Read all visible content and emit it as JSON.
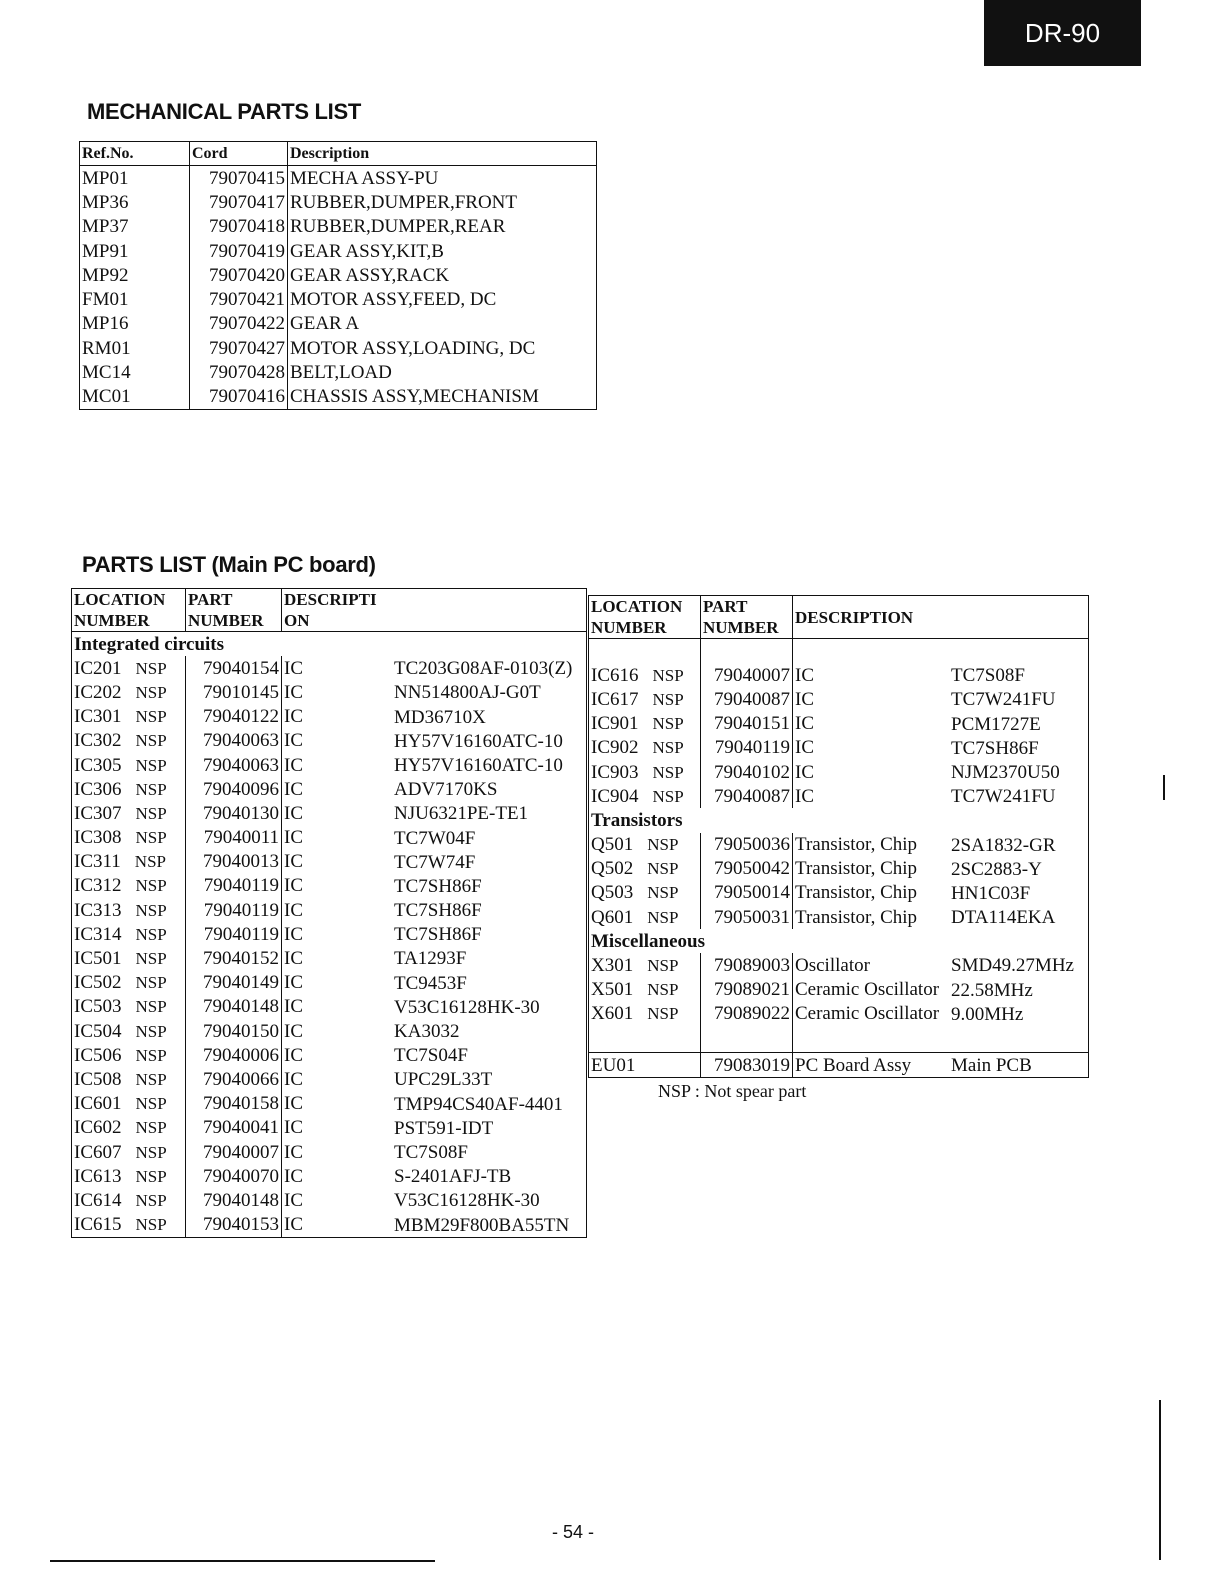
{
  "badge": "DR-90",
  "mechanical": {
    "title": "MECHANICAL PARTS LIST",
    "headers": [
      "Ref.No.",
      "Cord",
      "Description"
    ],
    "rows": [
      [
        "MP01",
        "79070415",
        "MECHA ASSY-PU"
      ],
      [
        "MP36",
        "79070417",
        "RUBBER,DUMPER,FRONT"
      ],
      [
        "MP37",
        "79070418",
        "RUBBER,DUMPER,REAR"
      ],
      [
        "MP91",
        "79070419",
        "GEAR ASSY,KIT,B"
      ],
      [
        "MP92",
        "79070420",
        "GEAR ASSY,RACK"
      ],
      [
        "FM01",
        "79070421",
        "MOTOR ASSY,FEED, DC"
      ],
      [
        "MP16",
        "79070422",
        "GEAR A"
      ],
      [
        "RM01",
        "79070427",
        "MOTOR ASSY,LOADING, DC"
      ],
      [
        "MC14",
        "79070428",
        "BELT,LOAD"
      ],
      [
        "MC01",
        "79070416",
        "CHASSIS ASSY,MECHANISM"
      ]
    ]
  },
  "parts": {
    "title": "PARTS LIST (Main PC board)",
    "left": {
      "headers": {
        "loc1": "LOCATION",
        "loc2": "NUMBER",
        "part1": "PART",
        "part2": "NUMBER",
        "desc1": "DESCRIPTI",
        "desc2": "ON"
      },
      "rows": [
        {
          "section": "Integrated circuits"
        },
        {
          "loc": "IC201",
          "nsp": "NSP",
          "part": "79040154",
          "kind": "IC",
          "model": "TC203G08AF-0103(Z)"
        },
        {
          "loc": "IC202",
          "nsp": "NSP",
          "part": "79010145",
          "kind": "IC",
          "model": "NN514800AJ-G0T"
        },
        {
          "loc": "IC301",
          "nsp": "NSP",
          "part": "79040122",
          "kind": "IC",
          "model": "MD36710X"
        },
        {
          "loc": "IC302",
          "nsp": "NSP",
          "part": "79040063",
          "kind": "IC",
          "model": "HY57V16160ATC-10"
        },
        {
          "loc": "IC305",
          "nsp": "NSP",
          "part": "79040063",
          "kind": "IC",
          "model": "HY57V16160ATC-10"
        },
        {
          "loc": "IC306",
          "nsp": "NSP",
          "part": "79040096",
          "kind": "IC",
          "model": "ADV7170KS"
        },
        {
          "loc": "IC307",
          "nsp": "NSP",
          "part": "79040130",
          "kind": "IC",
          "model": "NJU6321PE-TE1"
        },
        {
          "loc": "IC308",
          "nsp": "NSP",
          "part": "79040011",
          "kind": "IC",
          "model": "TC7W04F"
        },
        {
          "loc": "IC311",
          "nsp": "NSP",
          "part": "79040013",
          "kind": "IC",
          "model": "TC7W74F"
        },
        {
          "loc": "IC312",
          "nsp": "NSP",
          "part": "79040119",
          "kind": "IC",
          "model": "TC7SH86F"
        },
        {
          "loc": "IC313",
          "nsp": "NSP",
          "part": "79040119",
          "kind": "IC",
          "model": "TC7SH86F"
        },
        {
          "loc": "IC314",
          "nsp": "NSP",
          "part": "79040119",
          "kind": "IC",
          "model": "TC7SH86F"
        },
        {
          "loc": "IC501",
          "nsp": "NSP",
          "part": "79040152",
          "kind": "IC",
          "model": "TA1293F"
        },
        {
          "loc": "IC502",
          "nsp": "NSP",
          "part": "79040149",
          "kind": "IC",
          "model": "TC9453F"
        },
        {
          "loc": "IC503",
          "nsp": "NSP",
          "part": "79040148",
          "kind": "IC",
          "model": "V53C16128HK-30"
        },
        {
          "loc": "IC504",
          "nsp": "NSP",
          "part": "79040150",
          "kind": "IC",
          "model": "KA3032"
        },
        {
          "loc": "IC506",
          "nsp": "NSP",
          "part": "79040006",
          "kind": "IC",
          "model": "TC7S04F"
        },
        {
          "loc": "IC508",
          "nsp": "NSP",
          "part": "79040066",
          "kind": "IC",
          "model": "UPC29L33T"
        },
        {
          "loc": "IC601",
          "nsp": "NSP",
          "part": "79040158",
          "kind": "IC",
          "model": "TMP94CS40AF-4401"
        },
        {
          "loc": "IC602",
          "nsp": "NSP",
          "part": "79040041",
          "kind": "IC",
          "model": "PST591-IDT"
        },
        {
          "loc": "IC607",
          "nsp": "NSP",
          "part": "79040007",
          "kind": "IC",
          "model": "TC7S08F"
        },
        {
          "loc": "IC613",
          "nsp": "NSP",
          "part": "79040070",
          "kind": "IC",
          "model": "S-2401AFJ-TB"
        },
        {
          "loc": "IC614",
          "nsp": "NSP",
          "part": "79040148",
          "kind": "IC",
          "model": "V53C16128HK-30"
        },
        {
          "loc": "IC615",
          "nsp": "NSP",
          "part": "79040153",
          "kind": "IC",
          "model": "MBM29F800BA55TN"
        }
      ]
    },
    "right": {
      "headers": {
        "loc1": "LOCATION",
        "loc2": "NUMBER",
        "part1": "PART",
        "part2": "NUMBER",
        "desc": "DESCRIPTION"
      },
      "rows": [
        {
          "loc": "IC616",
          "nsp": "NSP",
          "part": "79040007",
          "kind": "IC",
          "model": "TC7S08F"
        },
        {
          "loc": "IC617",
          "nsp": "NSP",
          "part": "79040087",
          "kind": "IC",
          "model": "TC7W241FU"
        },
        {
          "loc": "IC901",
          "nsp": "NSP",
          "part": "79040151",
          "kind": "IC",
          "model": "PCM1727E"
        },
        {
          "loc": "IC902",
          "nsp": "NSP",
          "part": "79040119",
          "kind": "IC",
          "model": "TC7SH86F"
        },
        {
          "loc": "IC903",
          "nsp": "NSP",
          "part": "79040102",
          "kind": "IC",
          "model": "NJM2370U50"
        },
        {
          "loc": "IC904",
          "nsp": "NSP",
          "part": "79040087",
          "kind": "IC",
          "model": "TC7W241FU"
        },
        {
          "section": "Transistors"
        },
        {
          "loc": "Q501",
          "nsp": "NSP",
          "part": "79050036",
          "kind": "Transistor, Chip",
          "model": "2SA1832-GR"
        },
        {
          "loc": "Q502",
          "nsp": "NSP",
          "part": "79050042",
          "kind": "Transistor, Chip",
          "model": "2SC2883-Y"
        },
        {
          "loc": "Q503",
          "nsp": "NSP",
          "part": "79050014",
          "kind": "Transistor, Chip",
          "model": "HN1C03F"
        },
        {
          "loc": "Q601",
          "nsp": "NSP",
          "part": "79050031",
          "kind": "Transistor, Chip",
          "model": "DTA114EKA"
        },
        {
          "section": "Miscellaneous"
        },
        {
          "loc": "X301",
          "nsp": "NSP",
          "part": "79089003",
          "kind": "Oscillator",
          "model": "SMD49.27MHz"
        },
        {
          "loc": "X501",
          "nsp": "NSP",
          "part": "79089021",
          "kind": "Ceramic Oscillator",
          "model": "22.58MHz"
        },
        {
          "loc": "X601",
          "nsp": "NSP",
          "part": "79089022",
          "kind": "Ceramic Oscillator",
          "model": "9.00MHz"
        }
      ],
      "assembly": {
        "loc": "EU01",
        "part": "79083019",
        "kind": "PC Board Assy",
        "model": "Main PCB"
      }
    },
    "note": "NSP : Not spear part"
  },
  "page_number": "- 54 -"
}
